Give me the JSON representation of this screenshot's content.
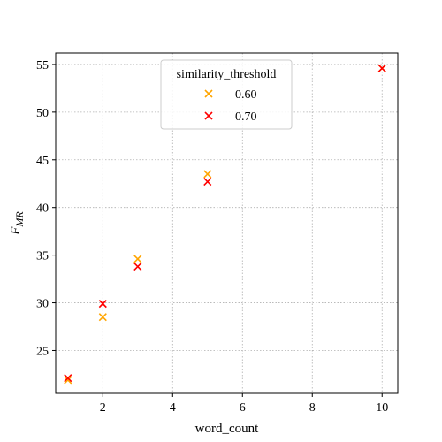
{
  "chart_data": {
    "type": "scatter",
    "title": "",
    "xlabel": "word_count",
    "ylabel": "F",
    "ylabel_subscript": "MR",
    "xlim": [
      0.65,
      10.45
    ],
    "ylim": [
      20.5,
      56.2
    ],
    "x_ticks": [
      2,
      4,
      6,
      8,
      10
    ],
    "y_ticks": [
      25,
      30,
      35,
      40,
      45,
      50,
      55
    ],
    "grid": true,
    "marker": "x",
    "legend": {
      "title": "similarity_threshold",
      "placement": "upper center"
    },
    "series": [
      {
        "name": "0.60",
        "color": "#ffa500",
        "points": [
          {
            "x": 1,
            "y": 21.9
          },
          {
            "x": 2,
            "y": 28.5
          },
          {
            "x": 3,
            "y": 34.6
          },
          {
            "x": 5,
            "y": 43.5
          },
          {
            "x": 10,
            "y": 54.6
          }
        ]
      },
      {
        "name": "0.70",
        "color": "#ff0000",
        "points": [
          {
            "x": 1,
            "y": 22.1
          },
          {
            "x": 2,
            "y": 29.9
          },
          {
            "x": 3,
            "y": 33.8
          },
          {
            "x": 5,
            "y": 42.7
          },
          {
            "x": 10,
            "y": 54.6
          }
        ]
      }
    ]
  }
}
